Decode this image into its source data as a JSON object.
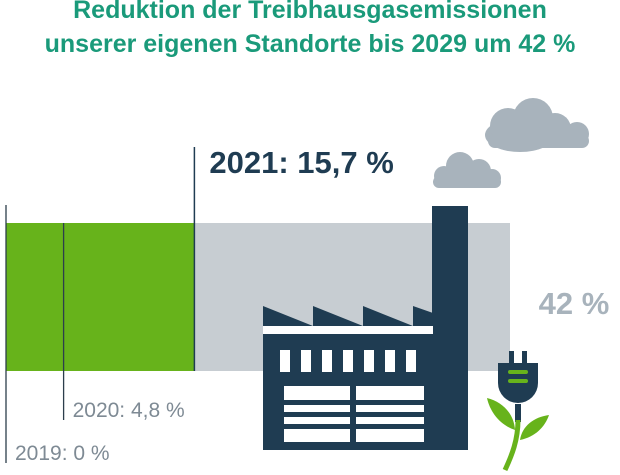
{
  "header": {
    "title_line1": "Reduktion der Treibhausgasemissionen",
    "title_line2": "unserer eigenen Standorte bis 2029 um 42 %"
  },
  "colors": {
    "title": "#1a9a7a",
    "achieved": "#67b31b",
    "target": "#c7cdd2",
    "dark": "#1f3c52",
    "label_grey": "#7e8a94",
    "target_label": "#a8b3bc",
    "cloud": "#a8b3bc"
  },
  "icons": [
    "factory-icon",
    "cloud-icon",
    "power-plug-icon",
    "sprout-icon"
  ],
  "chart_data": {
    "type": "bar",
    "orientation": "horizontal",
    "unit": "%",
    "xlim": [
      0,
      42
    ],
    "achieved_value": 15.7,
    "target_value": 42,
    "target_label": "42 %",
    "markers": [
      {
        "value": 0,
        "label": "2019: 0 %",
        "style": "small"
      },
      {
        "value": 4.8,
        "label": "2020: 4,8 %",
        "style": "small"
      },
      {
        "value": 15.7,
        "label": "2021: 15,7 %",
        "style": "large"
      }
    ]
  }
}
